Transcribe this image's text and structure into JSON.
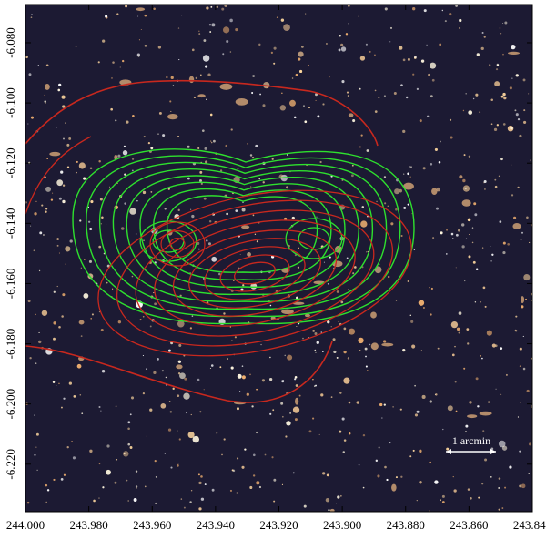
{
  "chart_data": {
    "type": "image",
    "xlim": [
      244.0,
      243.84
    ],
    "ylim": [
      -6.0673,
      -6.2358
    ],
    "xticks": [
      {
        "value": 244.0,
        "label": "244.000"
      },
      {
        "value": 243.98,
        "label": "243.980"
      },
      {
        "value": 243.96,
        "label": "243.960"
      },
      {
        "value": 243.94,
        "label": "243.940"
      },
      {
        "value": 243.92,
        "label": "243.920"
      },
      {
        "value": 243.9,
        "label": "243.900"
      },
      {
        "value": 243.88,
        "label": "243.880"
      },
      {
        "value": 243.86,
        "label": "243.860"
      },
      {
        "value": 243.84,
        "label": "243.840"
      }
    ],
    "yticks": [
      {
        "value": -6.08,
        "label": "-6.080"
      },
      {
        "value": -6.1,
        "label": "-6.100"
      },
      {
        "value": -6.12,
        "label": "-6.120"
      },
      {
        "value": -6.14,
        "label": "-6.140"
      },
      {
        "value": -6.16,
        "label": "-6.160"
      },
      {
        "value": -6.18,
        "label": "-6.180"
      },
      {
        "value": -6.2,
        "label": "-6.200"
      },
      {
        "value": -6.22,
        "label": "-6.220"
      }
    ],
    "annotation": "1 arcmin"
  }
}
